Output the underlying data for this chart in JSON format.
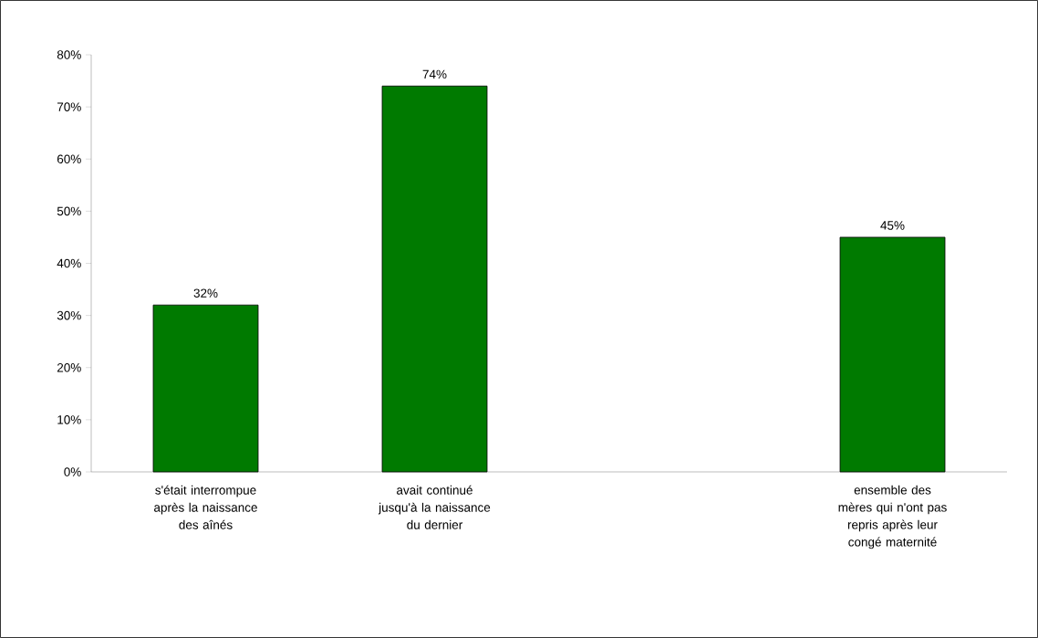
{
  "chart_data": {
    "type": "bar",
    "categories": [
      "s'était interrompue après la naissance des aînés",
      "avait continué jusqu'à la naissance du dernier",
      null,
      "ensemble des mères qui n'ont pas repris après leur congé maternité"
    ],
    "values": [
      32,
      74,
      null,
      45
    ],
    "value_labels": [
      "32%",
      "74%",
      null,
      "45%"
    ],
    "color": "#007a00",
    "ylim": [
      0,
      80
    ],
    "yticks": [
      {
        "value": 0,
        "label": "0%"
      },
      {
        "value": 10,
        "label": "10%"
      },
      {
        "value": 20,
        "label": "20%"
      },
      {
        "value": 30,
        "label": "30%"
      },
      {
        "value": 40,
        "label": "40%"
      },
      {
        "value": 50,
        "label": "50%"
      },
      {
        "value": 60,
        "label": "60%"
      },
      {
        "value": 70,
        "label": "70%"
      },
      {
        "value": 80,
        "label": "80%"
      }
    ],
    "grid": false
  }
}
